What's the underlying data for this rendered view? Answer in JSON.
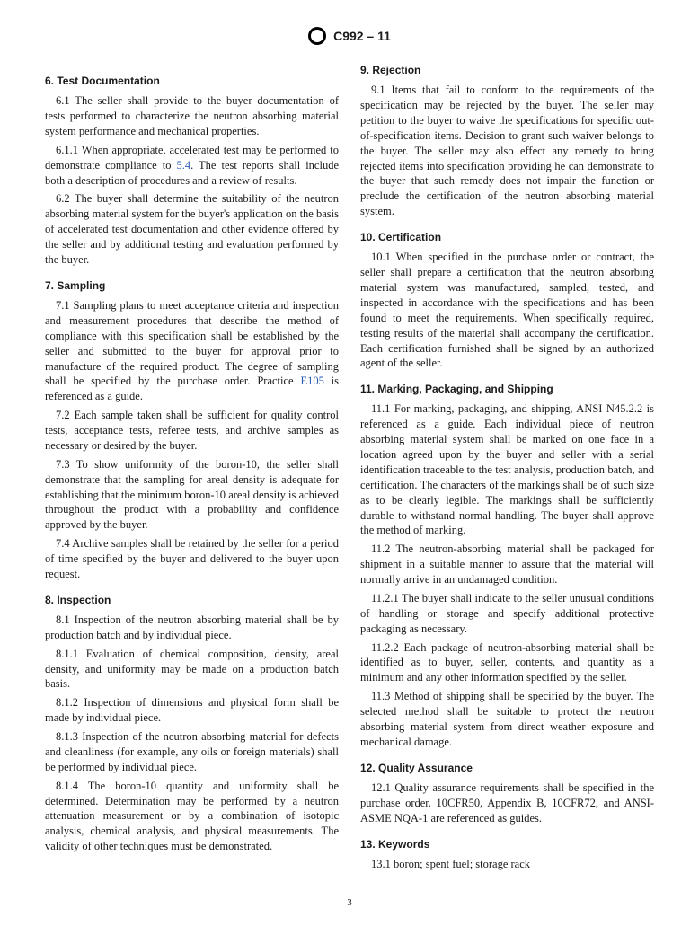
{
  "header": {
    "designation": "C992 – 11"
  },
  "sections": [
    {
      "num": "6.",
      "title": "Test Documentation",
      "paras": [
        {
          "num": "6.1",
          "text": "The seller shall provide to the buyer documentation of tests performed to characterize the neutron absorbing material system performance and mechanical properties."
        },
        {
          "num": "6.1.1",
          "text_pre": "When appropriate, accelerated test may be performed to demonstrate compliance to ",
          "ref": "5.4",
          "text_post": ". The test reports shall include both a description of procedures and a review of results."
        },
        {
          "num": "6.2",
          "text": "The buyer shall determine the suitability of the neutron absorbing material system for the buyer's application on the basis of accelerated test documentation and other evidence offered by the seller and by additional testing and evaluation performed by the buyer."
        }
      ]
    },
    {
      "num": "7.",
      "title": "Sampling",
      "paras": [
        {
          "num": "7.1",
          "text_pre": "Sampling plans to meet acceptance criteria and inspection and measurement procedures that describe the method of compliance with this specification shall be established by the seller and submitted to the buyer for approval prior to manufacture of the required product. The degree of sampling shall be specified by the purchase order. Practice ",
          "ref": "E105",
          "text_post": " is referenced as a guide."
        },
        {
          "num": "7.2",
          "text": "Each sample taken shall be sufficient for quality control tests, acceptance tests, referee tests, and archive samples as necessary or desired by the buyer."
        },
        {
          "num": "7.3",
          "text": "To show uniformity of the boron-10, the seller shall demonstrate that the sampling for areal density is adequate for establishing that the minimum boron-10 areal density is achieved throughout the product with a probability and confidence approved by the buyer."
        },
        {
          "num": "7.4",
          "text": "Archive samples shall be retained by the seller for a period of time specified by the buyer and delivered to the buyer upon request."
        }
      ]
    },
    {
      "num": "8.",
      "title": "Inspection",
      "paras": [
        {
          "num": "8.1",
          "text": "Inspection of the neutron absorbing material shall be by production batch and by individual piece."
        },
        {
          "num": "8.1.1",
          "text": "Evaluation of chemical composition, density, areal density, and uniformity may be made on a production batch basis."
        },
        {
          "num": "8.1.2",
          "text": "Inspection of dimensions and physical form shall be made by individual piece."
        },
        {
          "num": "8.1.3",
          "text": "Inspection of the neutron absorbing material for defects and cleanliness (for example, any oils or foreign materials) shall be performed by individual piece."
        },
        {
          "num": "8.1.4",
          "text": "The boron-10 quantity and uniformity shall be determined. Determination may be performed by a neutron attenuation measurement or by a combination of isotopic analysis, chemical analysis, and physical measurements. The validity of other techniques must be demonstrated."
        }
      ]
    },
    {
      "num": "9.",
      "title": "Rejection",
      "paras": [
        {
          "num": "9.1",
          "text": "Items that fail to conform to the requirements of the specification may be rejected by the buyer. The seller may petition to the buyer to waive the specifications for specific out-of-specification items. Decision to grant such waiver belongs to the buyer. The seller may also effect any remedy to bring rejected items into specification providing he can demonstrate to the buyer that such remedy does not impair the function or preclude the certification of the neutron absorbing material system."
        }
      ]
    },
    {
      "num": "10.",
      "title": "Certification",
      "paras": [
        {
          "num": "10.1",
          "text": "When specified in the purchase order or contract, the seller shall prepare a certification that the neutron absorbing material system was manufactured, sampled, tested, and inspected in accordance with the specifications and has been found to meet the requirements. When specifically required, testing results of the material shall accompany the certification. Each certification furnished shall be signed by an authorized agent of the seller."
        }
      ]
    },
    {
      "num": "11.",
      "title": "Marking, Packaging, and Shipping",
      "paras": [
        {
          "num": "11.1",
          "text": "For marking, packaging, and shipping, ANSI N45.2.2 is referenced as a guide. Each individual piece of neutron absorbing material system shall be marked on one face in a location agreed upon by the buyer and seller with a serial identification traceable to the test analysis, production batch, and certification. The characters of the markings shall be of such size as to be clearly legible. The markings shall be sufficiently durable to withstand normal handling. The buyer shall approve the method of marking."
        },
        {
          "num": "11.2",
          "text": "The neutron-absorbing material shall be packaged for shipment in a suitable manner to assure that the material will normally arrive in an undamaged condition."
        },
        {
          "num": "11.2.1",
          "text": "The buyer shall indicate to the seller unusual conditions of handling or storage and specify additional protective packaging as necessary."
        },
        {
          "num": "11.2.2",
          "text": "Each package of neutron-absorbing material shall be identified as to buyer, seller, contents, and quantity as a minimum and any other information specified by the seller."
        },
        {
          "num": "11.3",
          "text": "Method of shipping shall be specified by the buyer. The selected method shall be suitable to protect the neutron absorbing material system from direct weather exposure and mechanical damage."
        }
      ]
    },
    {
      "num": "12.",
      "title": "Quality Assurance",
      "paras": [
        {
          "num": "12.1",
          "text": "Quality assurance requirements shall be specified in the purchase order. 10CFR50, Appendix B, 10CFR72, and ANSI-ASME NQA-1 are referenced as guides."
        }
      ]
    },
    {
      "num": "13.",
      "title": "Keywords",
      "paras": [
        {
          "num": "13.1",
          "text": "boron; spent fuel; storage rack"
        }
      ]
    }
  ],
  "page_number": "3"
}
